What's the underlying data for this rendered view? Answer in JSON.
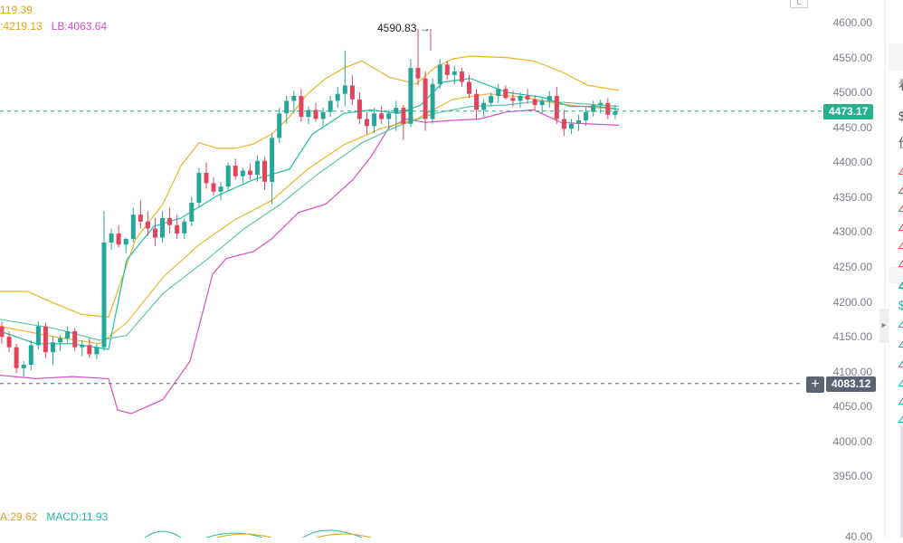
{
  "legend": {
    "top_value": "119.39",
    "mb_value": ":4219.13",
    "lb_value": "LB:4063.64",
    "macd_left": "A:29.62",
    "macd_value": "MACD:11.93"
  },
  "annotations": {
    "high_label": "4590.83 →"
  },
  "price_tags": {
    "current": "4473.17",
    "crosshair": "4083.12"
  },
  "axis": {
    "ticks": [
      "4600.00",
      "4550.00",
      "4500.00",
      "4450.00",
      "4400.00",
      "4350.00",
      "4300.00",
      "4250.00",
      "4200.00",
      "4150.00",
      "4100.00",
      "4050.00",
      "4000.00",
      "3950.00"
    ],
    "bottom_tick": "40.00"
  },
  "side_glyphs": [
    "看",
    "$",
    "价",
    "4",
    "4",
    "4",
    "4",
    "4",
    "4",
    "4",
    "$",
    "4",
    "4",
    "4",
    "4",
    "4",
    "4"
  ],
  "colors": {
    "up": "#26a69a",
    "down": "#e0455c",
    "upper_band": "#e7b425",
    "lower_band": "#d94fc3",
    "ma_fast": "#1dbf9d",
    "ma_slow": "#e8b82f",
    "current_tag": "#26b08e",
    "crosshair_tag": "#5b6571"
  },
  "chart_data": {
    "type": "candlestick",
    "ylim": [
      3925,
      4625
    ],
    "current_price": 4473.17,
    "crosshair_price": 4083.12,
    "high_marker": 4590.83,
    "ohlc": [
      [
        4165,
        4172,
        4140,
        4150
      ],
      [
        4150,
        4158,
        4128,
        4135
      ],
      [
        4135,
        4140,
        4098,
        4105
      ],
      [
        4105,
        4115,
        4093,
        4110
      ],
      [
        4110,
        4145,
        4102,
        4138
      ],
      [
        4138,
        4172,
        4132,
        4165
      ],
      [
        4165,
        4170,
        4120,
        4128
      ],
      [
        4128,
        4150,
        4110,
        4142
      ],
      [
        4142,
        4152,
        4130,
        4148
      ],
      [
        4148,
        4165,
        4140,
        4158
      ],
      [
        4158,
        4162,
        4130,
        4135
      ],
      [
        4135,
        4145,
        4122,
        4138
      ],
      [
        4138,
        4148,
        4120,
        4125
      ],
      [
        4125,
        4140,
        4118,
        4135
      ],
      [
        4135,
        4330,
        4130,
        4285
      ],
      [
        4285,
        4305,
        4275,
        4298
      ],
      [
        4298,
        4310,
        4278,
        4282
      ],
      [
        4282,
        4292,
        4270,
        4290
      ],
      [
        4290,
        4335,
        4285,
        4325
      ],
      [
        4325,
        4345,
        4305,
        4315
      ],
      [
        4315,
        4330,
        4295,
        4305
      ],
      [
        4305,
        4320,
        4280,
        4292
      ],
      [
        4292,
        4330,
        4285,
        4320
      ],
      [
        4320,
        4335,
        4298,
        4310
      ],
      [
        4310,
        4325,
        4290,
        4298
      ],
      [
        4298,
        4320,
        4290,
        4315
      ],
      [
        4315,
        4350,
        4308,
        4342
      ],
      [
        4342,
        4392,
        4335,
        4385
      ],
      [
        4385,
        4400,
        4362,
        4370
      ],
      [
        4370,
        4378,
        4352,
        4358
      ],
      [
        4358,
        4372,
        4345,
        4365
      ],
      [
        4365,
        4400,
        4358,
        4395
      ],
      [
        4395,
        4405,
        4375,
        4380
      ],
      [
        4380,
        4392,
        4370,
        4388
      ],
      [
        4388,
        4398,
        4375,
        4382
      ],
      [
        4382,
        4410,
        4372,
        4402
      ],
      [
        4402,
        4408,
        4360,
        4372
      ],
      [
        4372,
        4442,
        4340,
        4435
      ],
      [
        4435,
        4478,
        4428,
        4470
      ],
      [
        4470,
        4495,
        4455,
        4488
      ],
      [
        4488,
        4502,
        4470,
        4495
      ],
      [
        4495,
        4505,
        4458,
        4465
      ],
      [
        4465,
        4480,
        4455,
        4475
      ],
      [
        4475,
        4485,
        4458,
        4462
      ],
      [
        4462,
        4478,
        4452,
        4472
      ],
      [
        4472,
        4495,
        4465,
        4488
      ],
      [
        4488,
        4508,
        4478,
        4498
      ],
      [
        4498,
        4560,
        4480,
        4510
      ],
      [
        4510,
        4525,
        4482,
        4490
      ],
      [
        4490,
        4500,
        4455,
        4462
      ],
      [
        4462,
        4472,
        4440,
        4452
      ],
      [
        4452,
        4478,
        4442,
        4470
      ],
      [
        4470,
        4480,
        4455,
        4462
      ],
      [
        4462,
        4475,
        4448,
        4470
      ],
      [
        4470,
        4488,
        4445,
        4478
      ],
      [
        4478,
        4482,
        4432,
        4455
      ],
      [
        4455,
        4548,
        4450,
        4535
      ],
      [
        4535,
        4591,
        4510,
        4520
      ],
      [
        4520,
        4530,
        4445,
        4462
      ],
      [
        4462,
        4520,
        4455,
        4512
      ],
      [
        4512,
        4548,
        4505,
        4540
      ],
      [
        4540,
        4545,
        4518,
        4525
      ],
      [
        4525,
        4538,
        4512,
        4530
      ],
      [
        4530,
        4535,
        4508,
        4515
      ],
      [
        4515,
        4525,
        4492,
        4498
      ],
      [
        4498,
        4505,
        4462,
        4475
      ],
      [
        4475,
        4490,
        4465,
        4485
      ],
      [
        4485,
        4500,
        4480,
        4495
      ],
      [
        4495,
        4512,
        4485,
        4505
      ],
      [
        4505,
        4510,
        4490,
        4492
      ],
      [
        4492,
        4502,
        4480,
        4488
      ],
      [
        4488,
        4500,
        4478,
        4495
      ],
      [
        4495,
        4505,
        4484,
        4490
      ],
      [
        4490,
        4496,
        4475,
        4482
      ],
      [
        4482,
        4492,
        4470,
        4488
      ],
      [
        4488,
        4502,
        4478,
        4495
      ],
      [
        4495,
        4508,
        4455,
        4462
      ],
      [
        4462,
        4475,
        4438,
        4448
      ],
      [
        4448,
        4462,
        4440,
        4455
      ],
      [
        4455,
        4468,
        4445,
        4460
      ],
      [
        4460,
        4478,
        4452,
        4472
      ],
      [
        4472,
        4488,
        4465,
        4482
      ],
      [
        4482,
        4490,
        4470,
        4485
      ],
      [
        4485,
        4492,
        4462,
        4468
      ],
      [
        4468,
        4482,
        4462,
        4473
      ]
    ],
    "upper_band": [
      [
        0,
        4215
      ],
      [
        30,
        4215
      ],
      [
        60,
        4198
      ],
      [
        90,
        4182
      ],
      [
        120,
        4178
      ],
      [
        150,
        4290
      ],
      [
        180,
        4340
      ],
      [
        200,
        4395
      ],
      [
        220,
        4428
      ],
      [
        240,
        4420
      ],
      [
        260,
        4420
      ],
      [
        280,
        4426
      ],
      [
        300,
        4440
      ],
      [
        320,
        4465
      ],
      [
        340,
        4498
      ],
      [
        360,
        4520
      ],
      [
        380,
        4535
      ],
      [
        400,
        4545
      ],
      [
        430,
        4522
      ],
      [
        460,
        4512
      ],
      [
        480,
        4535
      ],
      [
        500,
        4548
      ],
      [
        520,
        4552
      ],
      [
        560,
        4550
      ],
      [
        590,
        4545
      ],
      [
        620,
        4530
      ],
      [
        650,
        4510
      ],
      [
        684,
        4503
      ]
    ],
    "lower_band": [
      [
        0,
        4095
      ],
      [
        40,
        4090
      ],
      [
        80,
        4093
      ],
      [
        120,
        4090
      ],
      [
        130,
        4045
      ],
      [
        145,
        4040
      ],
      [
        180,
        4060
      ],
      [
        210,
        4115
      ],
      [
        235,
        4240
      ],
      [
        250,
        4262
      ],
      [
        280,
        4272
      ],
      [
        300,
        4290
      ],
      [
        330,
        4328
      ],
      [
        360,
        4340
      ],
      [
        390,
        4375
      ],
      [
        410,
        4408
      ],
      [
        430,
        4450
      ],
      [
        450,
        4462
      ],
      [
        470,
        4457
      ],
      [
        500,
        4460
      ],
      [
        530,
        4462
      ],
      [
        560,
        4472
      ],
      [
        590,
        4475
      ],
      [
        620,
        4457
      ],
      [
        650,
        4455
      ],
      [
        684,
        4453
      ]
    ],
    "ma_fast": [
      [
        0,
        4158
      ],
      [
        40,
        4140
      ],
      [
        80,
        4140
      ],
      [
        120,
        4132
      ],
      [
        140,
        4260
      ],
      [
        170,
        4308
      ],
      [
        200,
        4320
      ],
      [
        240,
        4352
      ],
      [
        280,
        4375
      ],
      [
        320,
        4390
      ],
      [
        345,
        4440
      ],
      [
        380,
        4470
      ],
      [
        410,
        4475
      ],
      [
        440,
        4470
      ],
      [
        465,
        4482
      ],
      [
        490,
        4515
      ],
      [
        520,
        4520
      ],
      [
        560,
        4500
      ],
      [
        600,
        4493
      ],
      [
        630,
        4480
      ],
      [
        660,
        4480
      ],
      [
        684,
        4476
      ]
    ],
    "ma_slow": [
      [
        0,
        4175
      ],
      [
        60,
        4162
      ],
      [
        110,
        4145
      ],
      [
        140,
        4152
      ],
      [
        180,
        4212
      ],
      [
        230,
        4262
      ],
      [
        270,
        4305
      ],
      [
        310,
        4340
      ],
      [
        350,
        4382
      ],
      [
        400,
        4428
      ],
      [
        440,
        4452
      ],
      [
        480,
        4470
      ],
      [
        520,
        4480
      ],
      [
        560,
        4482
      ],
      [
        600,
        4488
      ],
      [
        640,
        4484
      ],
      [
        684,
        4480
      ]
    ],
    "ma_mid": [
      [
        0,
        4165
      ],
      [
        60,
        4150
      ],
      [
        110,
        4140
      ],
      [
        140,
        4170
      ],
      [
        180,
        4235
      ],
      [
        220,
        4282
      ],
      [
        260,
        4318
      ],
      [
        300,
        4345
      ],
      [
        340,
        4390
      ],
      [
        380,
        4425
      ],
      [
        420,
        4448
      ],
      [
        460,
        4462
      ],
      [
        500,
        4490
      ],
      [
        540,
        4498
      ],
      [
        580,
        4493
      ],
      [
        620,
        4483
      ],
      [
        660,
        4478
      ],
      [
        684,
        4476
      ]
    ]
  }
}
